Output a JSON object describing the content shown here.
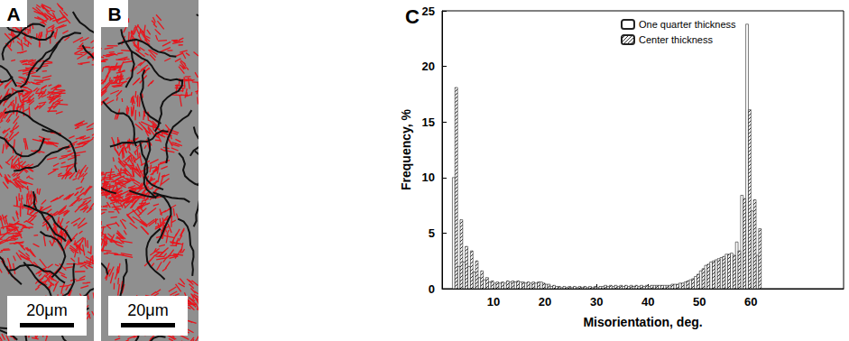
{
  "panels": [
    {
      "label": "A",
      "scale_bar": "20μm"
    },
    {
      "label": "B",
      "scale_bar": "20μm"
    }
  ],
  "chart_data": {
    "type": "histogram",
    "panel_label": "C",
    "x_label": "Misorientation, deg.",
    "y_label": "Frequency, %",
    "bins": [
      2,
      3,
      4,
      5,
      6,
      7,
      8,
      9,
      10,
      11,
      12,
      13,
      14,
      15,
      16,
      17,
      18,
      19,
      20,
      21,
      22,
      23,
      24,
      25,
      26,
      27,
      28,
      29,
      30,
      31,
      32,
      33,
      34,
      35,
      36,
      37,
      38,
      39,
      40,
      41,
      42,
      43,
      44,
      45,
      46,
      47,
      48,
      49,
      50,
      51,
      52,
      53,
      54,
      55,
      56,
      57,
      58,
      59,
      60,
      61,
      62
    ],
    "series": [
      {
        "name": "One quarter thickness",
        "color": "#ffffff",
        "marker": "open",
        "values": [
          10.0,
          2.0,
          2.4,
          2.0,
          1.5,
          1.0,
          0.8,
          0.6,
          0.5,
          0.5,
          0.5,
          0.6,
          0.6,
          0.6,
          0.5,
          0.5,
          0.5,
          0.6,
          0.4,
          0.2,
          0.2,
          0.1,
          0.1,
          0.1,
          0.1,
          0.1,
          0.1,
          0.1,
          0.1,
          0.2,
          0.2,
          0.2,
          0.2,
          0.2,
          0.2,
          0.2,
          0.2,
          0.2,
          0.2,
          0.3,
          0.3,
          0.3,
          0.3,
          0.4,
          0.5,
          0.6,
          0.8,
          1.1,
          1.6,
          2.1,
          2.4,
          2.6,
          2.8,
          3.1,
          3.2,
          4.2,
          8.4,
          23.8,
          7.0,
          3.0
        ]
      },
      {
        "name": "Center thickness",
        "color": "#333333",
        "marker": "hatched",
        "values": [
          18.1,
          6.2,
          3.8,
          3.4,
          2.5,
          1.6,
          1.0,
          0.7,
          0.6,
          0.6,
          0.7,
          0.7,
          0.7,
          0.6,
          0.6,
          0.6,
          0.6,
          0.5,
          0.4,
          0.3,
          0.2,
          0.2,
          0.2,
          0.2,
          0.2,
          0.2,
          0.2,
          0.2,
          0.2,
          0.3,
          0.3,
          0.3,
          0.3,
          0.3,
          0.3,
          0.3,
          0.3,
          0.3,
          0.3,
          0.3,
          0.3,
          0.3,
          0.4,
          0.4,
          0.5,
          0.7,
          0.9,
          1.3,
          1.8,
          2.2,
          2.5,
          2.7,
          2.9,
          3.1,
          3.0,
          3.4,
          8.1,
          16.1,
          8.0,
          5.4
        ]
      }
    ],
    "xlim": [
      0,
      78
    ],
    "xticks": [
      10,
      20,
      30,
      40,
      50,
      60
    ],
    "ylim": [
      0,
      25
    ],
    "yticks": [
      0,
      5,
      10,
      15,
      20,
      25
    ],
    "grid": false,
    "legend": "upper right"
  }
}
